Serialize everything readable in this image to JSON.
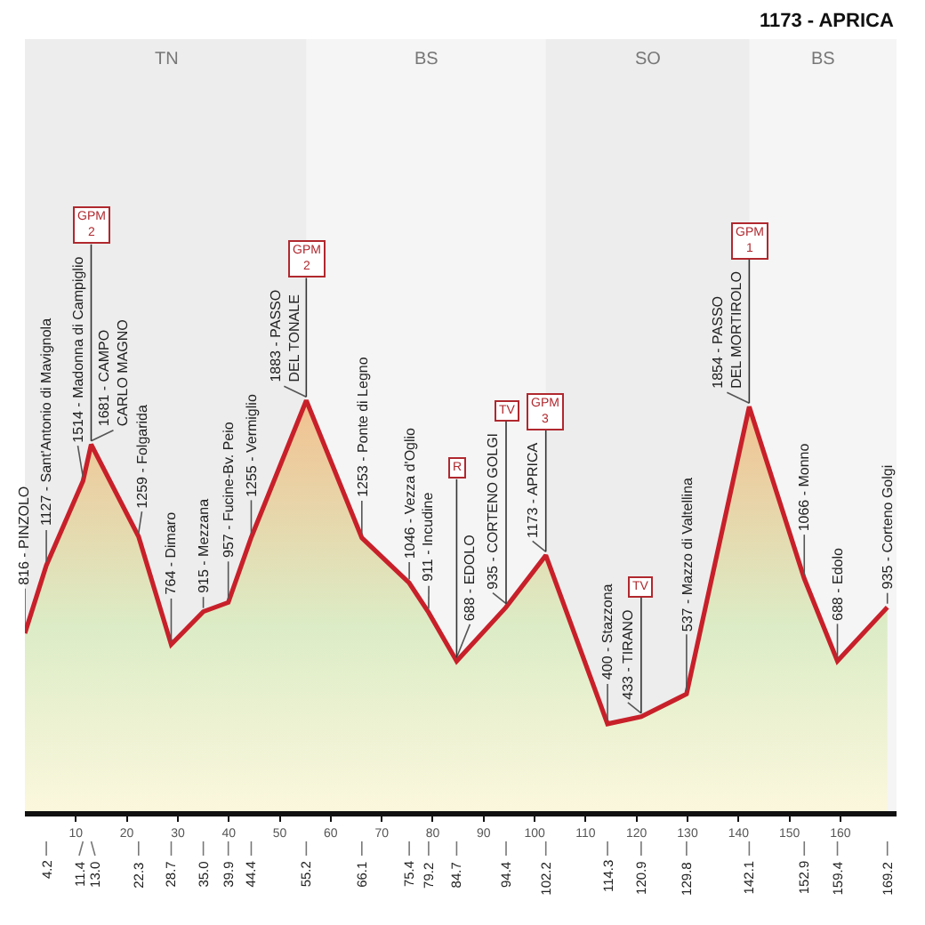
{
  "chart_data": {
    "type": "area",
    "x": [
      0,
      4.2,
      11.4,
      13,
      22.3,
      28.7,
      35,
      39.9,
      44.4,
      55.2,
      66.1,
      75.4,
      79.2,
      84.7,
      94.4,
      102.2,
      114.3,
      120.9,
      129.8,
      142.1,
      152.9,
      159.4,
      169.2
    ],
    "values": [
      816,
      1127,
      1514,
      1681,
      1259,
      764,
      915,
      957,
      1255,
      1883,
      1253,
      1046,
      911,
      688,
      935,
      1173,
      400,
      433,
      537,
      1854,
      1066,
      688,
      935
    ],
    "value_labels": [
      "816 - PINZOLO",
      "1127 - Sant'Antonio di Mavignola",
      "1514 - Madonna di Campiglio",
      "1681 - CAMPO\nCARLO MAGNO",
      "1259 - Folgarida",
      "764 - Dimaro",
      "915 - Mezzana",
      "957 - Fucine-Bv. Peio",
      "1255 - Vermiglio",
      "1883 - PASSO\nDEL TONALE",
      "1253 - Ponte di Legno",
      "1046 - Vezza d'Oglio",
      "911 - Incudine",
      "688 - EDOLO",
      "935 - CORTENO GOLGI",
      "1173 - APRICA",
      "400 - Stazzona",
      "433 - TIRANO",
      "537 - Mazzo di Valtellina",
      "1854 - PASSO\nDEL MORTIROLO",
      "1066 - Monno",
      "688 - Edolo",
      "935 - Corteno Golgi"
    ],
    "color": "#c8202a",
    "xlim": [
      0,
      171
    ],
    "xticks": [
      10,
      20,
      30,
      40,
      50,
      60,
      70,
      80,
      90,
      100,
      110,
      120,
      130,
      140,
      150,
      160
    ],
    "x2lim": [
      0,
      171
    ],
    "x2ticks": [
      4.2,
      11.4,
      {
        "value": 13,
        "label": "13.0"
      },
      22.3,
      28.7,
      {
        "value": 35,
        "label": "35.0"
      },
      39.9,
      44.4,
      55.2,
      66.1,
      75.4,
      79.2,
      84.7,
      94.4,
      102.2,
      114.3,
      120.9,
      129.8,
      142.1,
      152.9,
      159.4,
      169.2
    ],
    "annotations": [
      "1173 - APRICA",
      {
        "text": "GPM\n2",
        "x": 13,
        "y": 1681
      },
      {
        "text": "GPM\n2",
        "x": 55.2,
        "y": 1883
      },
      {
        "text": "R",
        "x": 84.7,
        "y": 688
      },
      {
        "text": "TV",
        "x": 94.4,
        "y": 935
      },
      {
        "text": "GPM\n3",
        "x": 102.2,
        "y": 1173
      },
      {
        "text": "TV",
        "x": 120.9,
        "y": 433
      },
      {
        "text": "GPM\n1",
        "x": 142.1,
        "y": 1854
      }
    ],
    "bands": [
      {
        "axis": "x",
        "from": 0,
        "to": 55.2,
        "label": "TN",
        "color": "#9a9a9a"
      },
      {
        "axis": "x",
        "from": 55.2,
        "to": 102.2,
        "label": "BS",
        "color": "#9a9a9a"
      },
      {
        "axis": "x",
        "from": 102.2,
        "to": 142.1,
        "label": "SO",
        "color": "#9a9a9a"
      },
      {
        "axis": "x",
        "from": 142.1,
        "to": 171,
        "label": "BS",
        "color": "#9a9a9a"
      }
    ]
  }
}
